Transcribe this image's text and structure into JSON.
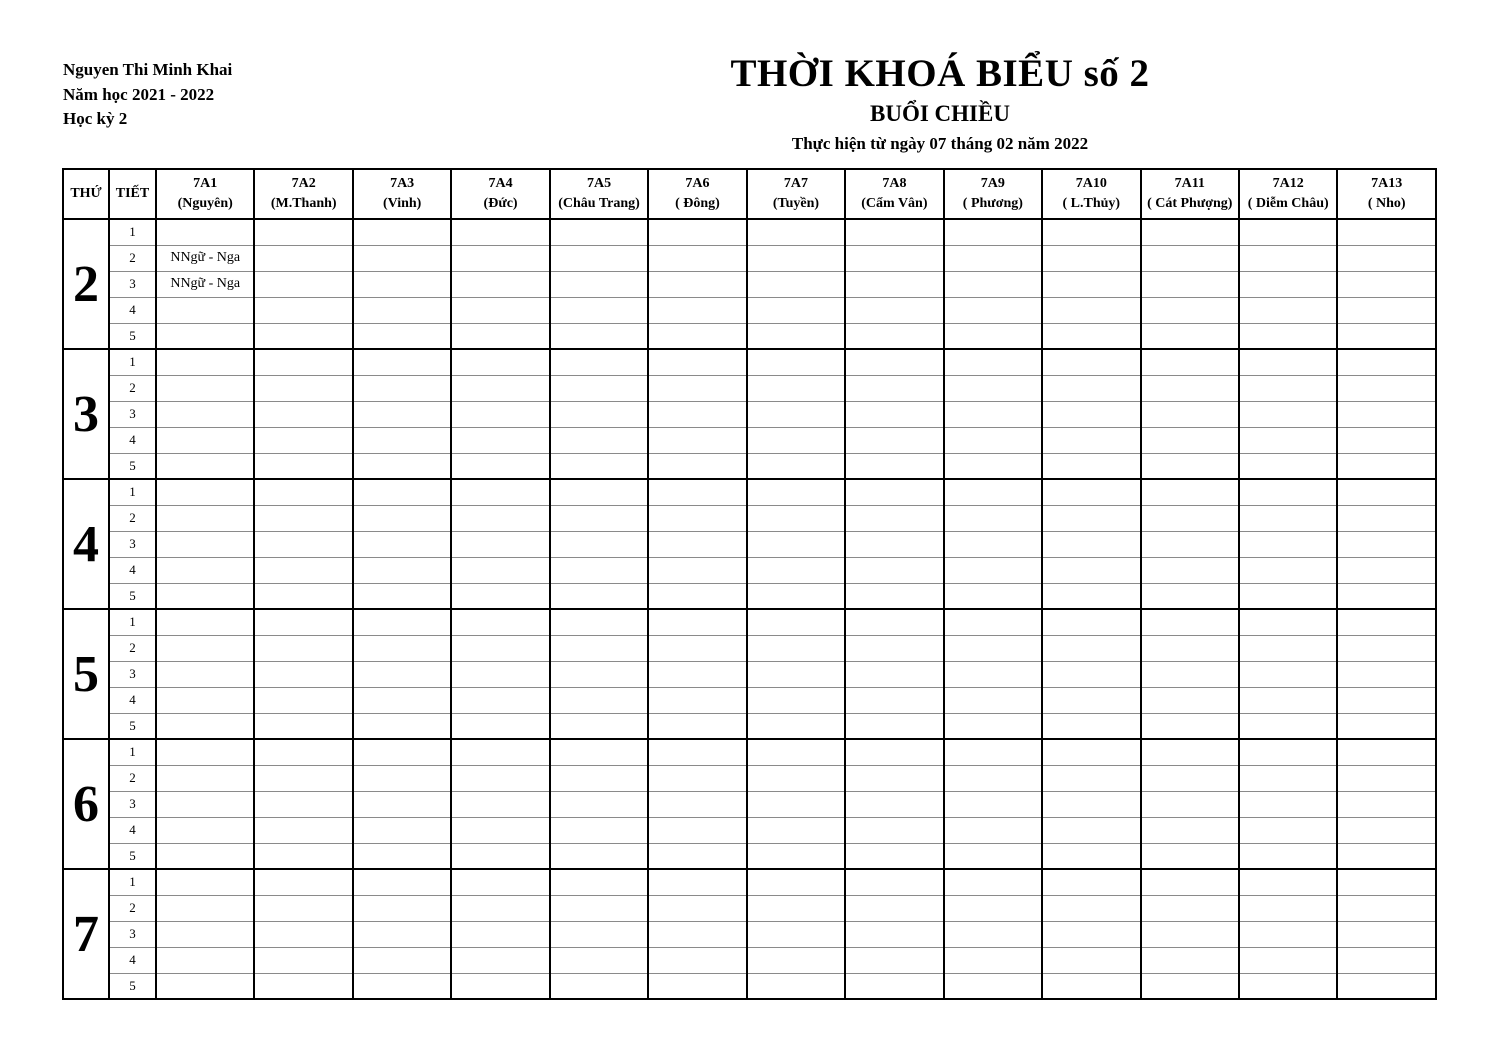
{
  "header": {
    "school_name": "Nguyen Thi Minh Khai",
    "school_year": "Năm học 2021 - 2022",
    "semester": "Học kỳ 2",
    "title": "THỜI KHOÁ BIỂU số 2",
    "subtitle": "BUỔI CHIỀU",
    "effective_date": "Thực hiện từ ngày 07 tháng 02 năm 2022"
  },
  "table": {
    "day_column_header": "THỨ",
    "period_column_header": "TIẾT",
    "classes": [
      {
        "name": "7A1",
        "teacher": "(Nguyên)"
      },
      {
        "name": "7A2",
        "teacher": "(M.Thanh)"
      },
      {
        "name": "7A3",
        "teacher": "(Vinh)"
      },
      {
        "name": "7A4",
        "teacher": "(Đức)"
      },
      {
        "name": "7A5",
        "teacher": "(Châu Trang)"
      },
      {
        "name": "7A6",
        "teacher": "( Đông)"
      },
      {
        "name": "7A7",
        "teacher": "(Tuyền)"
      },
      {
        "name": "7A8",
        "teacher": "(Cẩm Vân)"
      },
      {
        "name": "7A9",
        "teacher": "( Phương)"
      },
      {
        "name": "7A10",
        "teacher": "( L.Thủy)"
      },
      {
        "name": "7A11",
        "teacher": "( Cát Phượng)"
      },
      {
        "name": "7A12",
        "teacher": "( Diễm Châu)"
      },
      {
        "name": "7A13",
        "teacher": "( Nho)"
      }
    ],
    "days": [
      "2",
      "3",
      "4",
      "5",
      "6",
      "7"
    ],
    "periods": [
      "1",
      "2",
      "3",
      "4",
      "5"
    ],
    "entries": [
      {
        "day": "2",
        "period": "2",
        "class": "7A1",
        "text": "NNgữ - Nga"
      },
      {
        "day": "2",
        "period": "3",
        "class": "7A1",
        "text": "NNgữ - Nga"
      }
    ]
  },
  "colors": {
    "background": "#ffffff",
    "text": "#000000",
    "border_thick": "#000000",
    "border_thin": "#8a8a8a"
  }
}
